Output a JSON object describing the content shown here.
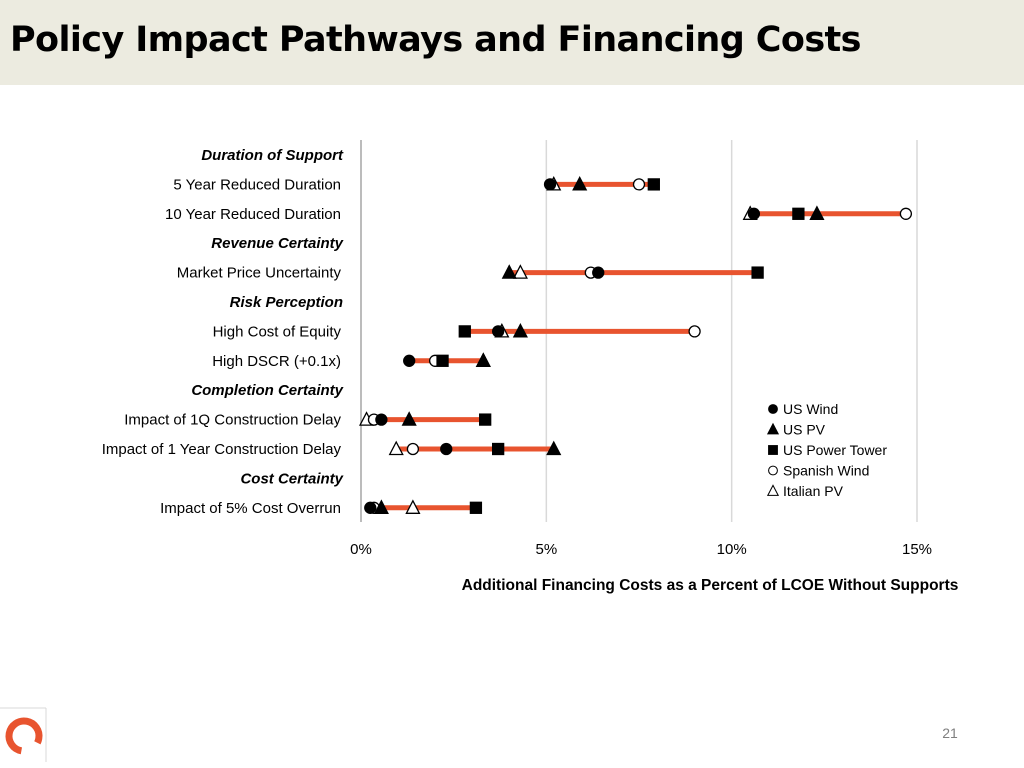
{
  "slide": {
    "title": "Policy Impact Pathways and Financing Costs",
    "page_number": "21"
  },
  "colors": {
    "range_bar": "#e8542f",
    "gridline": "#d9d9d9",
    "header_bg": "#ecebe0",
    "logo": "#e8542f"
  },
  "chart_data": {
    "type": "scatter",
    "orientation": "horizontal",
    "xlabel": "Additional Financing Costs as a Percent of LCOE Without Supports",
    "xlim": [
      0,
      15
    ],
    "xticks": [
      {
        "value": 0,
        "label": "0%"
      },
      {
        "value": 5,
        "label": "5%"
      },
      {
        "value": 10,
        "label": "10%"
      },
      {
        "value": 15,
        "label": "15%"
      }
    ],
    "grid": true,
    "legend_position": "bottom-right",
    "series": [
      {
        "name": "US Wind",
        "marker": "filled-circle"
      },
      {
        "name": "US PV",
        "marker": "filled-triangle"
      },
      {
        "name": "US Power Tower",
        "marker": "filled-square"
      },
      {
        "name": "Spanish Wind",
        "marker": "open-circle"
      },
      {
        "name": "Italian PV",
        "marker": "open-triangle"
      }
    ],
    "rows": [
      {
        "label": "Duration of Support",
        "group_header": true
      },
      {
        "label": "5 Year Reduced Duration",
        "values": [
          5.1,
          5.9,
          7.9,
          7.5,
          5.2
        ]
      },
      {
        "label": "10 Year Reduced Duration",
        "values": [
          10.6,
          12.3,
          11.8,
          14.7,
          10.5
        ]
      },
      {
        "label": "Revenue Certainty",
        "group_header": true
      },
      {
        "label": "Market Price Uncertainty",
        "values": [
          6.4,
          4.0,
          10.7,
          6.2,
          4.3
        ]
      },
      {
        "label": "Risk Perception",
        "group_header": true
      },
      {
        "label": "High Cost of Equity",
        "values": [
          3.7,
          4.3,
          2.8,
          9.0,
          3.8
        ]
      },
      {
        "label": "High DSCR (+0.1x)",
        "values": [
          1.3,
          3.3,
          2.2,
          2.0,
          3.3
        ]
      },
      {
        "label": "Completion Certainty",
        "group_header": true
      },
      {
        "label": "Impact of 1Q Construction Delay",
        "values": [
          0.55,
          1.3,
          3.35,
          0.35,
          0.15
        ]
      },
      {
        "label": "Impact of 1 Year Construction Delay",
        "values": [
          2.3,
          5.2,
          3.7,
          1.4,
          0.95
        ]
      },
      {
        "label": "Cost Certainty",
        "group_header": true
      },
      {
        "label": "Impact of 5% Cost Overrun",
        "values": [
          0.25,
          0.55,
          3.1,
          0.35,
          1.4
        ]
      }
    ]
  }
}
